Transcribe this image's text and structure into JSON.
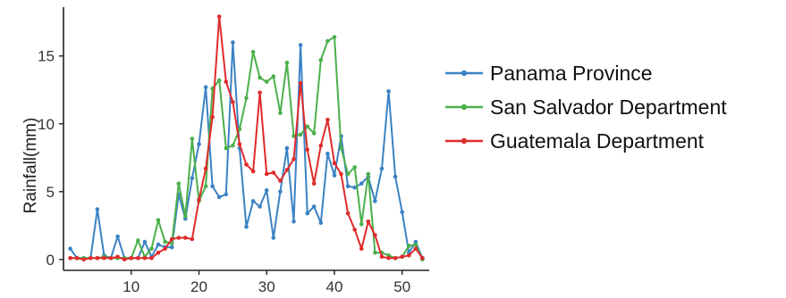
{
  "chart_data": {
    "type": "line",
    "title": "",
    "xlabel": "",
    "ylabel": "Rainfall(mm)",
    "xlim": [
      0,
      54
    ],
    "ylim": [
      -0.8,
      18.6
    ],
    "x_ticks": [
      10,
      20,
      30,
      40,
      50
    ],
    "y_ticks": [
      0,
      5,
      10,
      15
    ],
    "grid": false,
    "legend_position": "right",
    "x": [
      1,
      2,
      3,
      4,
      5,
      6,
      7,
      8,
      9,
      10,
      11,
      12,
      13,
      14,
      15,
      16,
      17,
      18,
      19,
      20,
      21,
      22,
      23,
      24,
      25,
      26,
      27,
      28,
      29,
      30,
      31,
      32,
      33,
      34,
      35,
      36,
      37,
      38,
      39,
      40,
      41,
      42,
      43,
      44,
      45,
      46,
      47,
      48,
      49,
      50,
      51,
      52,
      53
    ],
    "series": [
      {
        "name": "Panama Province",
        "color": "#3b82c4",
        "values": [
          0.8,
          0.1,
          0.1,
          0.1,
          3.7,
          0.3,
          0.1,
          1.7,
          0.1,
          0.1,
          0.1,
          1.3,
          0.2,
          1.1,
          0.9,
          0.9,
          4.8,
          3.0,
          6.0,
          8.5,
          12.7,
          5.4,
          4.6,
          4.8,
          16.0,
          8.2,
          2.4,
          4.3,
          3.9,
          5.1,
          1.6,
          5.0,
          8.2,
          2.8,
          15.8,
          3.4,
          3.9,
          2.7,
          7.8,
          6.2,
          9.1,
          5.4,
          5.3,
          5.6,
          6.1,
          4.3,
          6.7,
          12.4,
          6.1,
          3.5,
          0.5,
          1.3,
          0.1
        ]
      },
      {
        "name": "San Salvador Department",
        "color": "#4bb04b",
        "values": [
          0.1,
          0.1,
          0.1,
          0.1,
          0.1,
          0.2,
          0.1,
          0.1,
          0.1,
          0.1,
          1.4,
          0.2,
          0.8,
          2.9,
          1.3,
          1.2,
          5.6,
          3.2,
          8.9,
          4.3,
          5.4,
          12.6,
          13.2,
          8.2,
          8.4,
          9.6,
          11.9,
          15.3,
          13.4,
          13.1,
          13.5,
          10.8,
          14.5,
          9.1,
          9.2,
          9.8,
          9.3,
          14.7,
          16.1,
          16.4,
          8.2,
          6.3,
          6.8,
          2.6,
          6.3,
          0.5,
          0.5,
          0.3,
          0.1,
          0.2,
          1.0,
          1.1,
          0.0
        ]
      },
      {
        "name": "Guatemala Department",
        "color": "#e02b2b",
        "values": [
          0.1,
          0.1,
          0.0,
          0.1,
          0.1,
          0.1,
          0.1,
          0.2,
          0.0,
          0.1,
          0.1,
          0.1,
          0.1,
          0.5,
          0.8,
          1.5,
          1.6,
          1.6,
          1.5,
          4.4,
          6.7,
          10.5,
          17.9,
          13.1,
          11.6,
          8.5,
          7.0,
          6.5,
          12.3,
          6.3,
          6.4,
          5.8,
          6.6,
          7.4,
          13.0,
          8.1,
          5.6,
          8.4,
          10.3,
          7.1,
          6.3,
          3.4,
          2.2,
          0.8,
          2.8,
          1.8,
          0.2,
          0.1,
          0.1,
          0.2,
          0.3,
          0.8,
          0.1
        ]
      }
    ]
  }
}
